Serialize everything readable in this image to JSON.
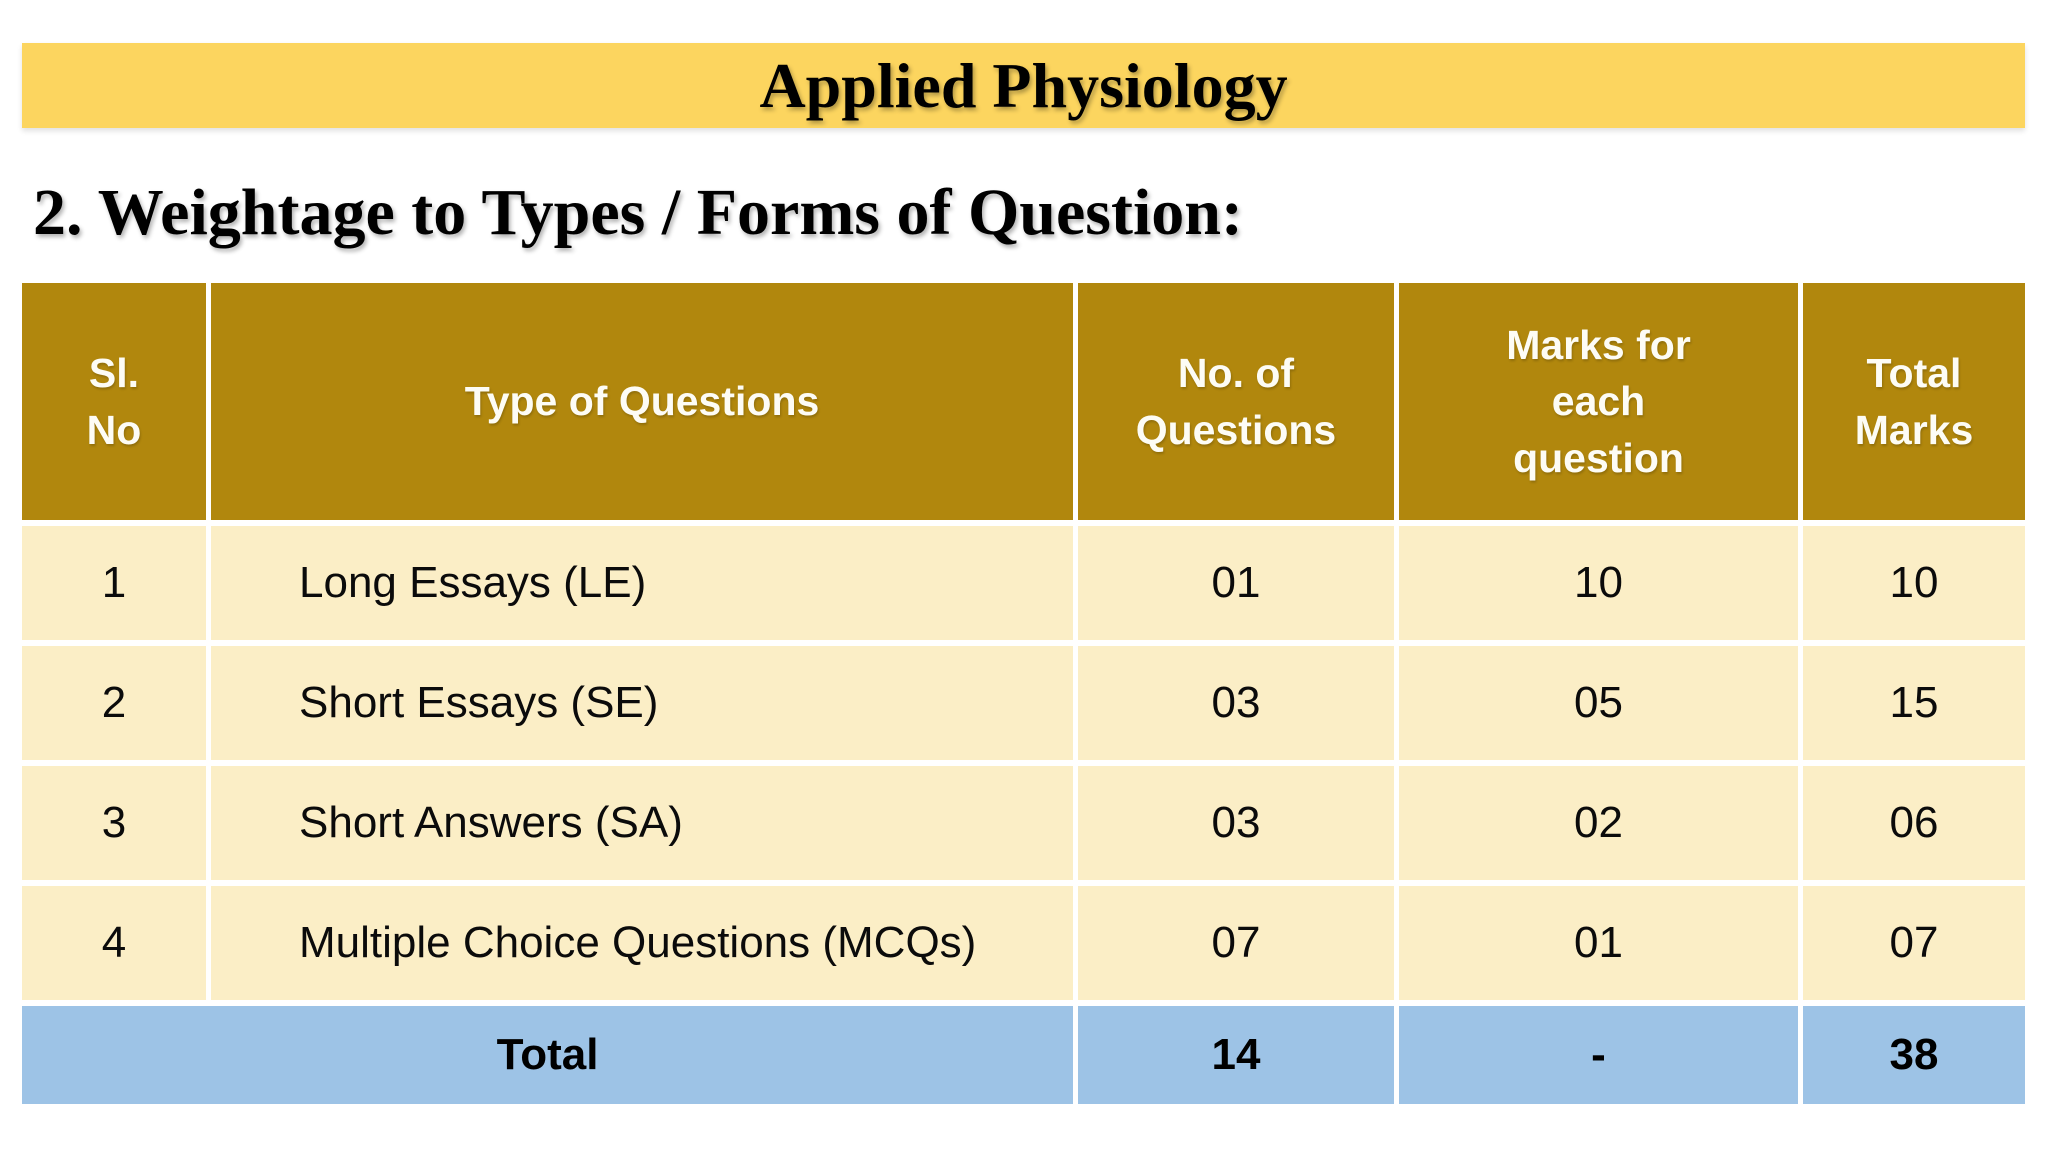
{
  "banner": {
    "title": "Applied Physiology"
  },
  "heading": "2. Weightage to Types / Forms of Question:",
  "table": {
    "columns": {
      "sl": "Sl.\nNo",
      "type": "Type of Questions",
      "num": "No. of\nQuestions",
      "marks": "Marks for\neach\nquestion",
      "total": "Total\nMarks"
    },
    "rows": [
      {
        "sl": "1",
        "type": "Long Essays (LE)",
        "num": "01",
        "marks": "10",
        "total": "10"
      },
      {
        "sl": "2",
        "type": "Short Essays (SE)",
        "num": "03",
        "marks": "05",
        "total": "15"
      },
      {
        "sl": "3",
        "type": "Short Answers (SA)",
        "num": "03",
        "marks": "02",
        "total": "06"
      },
      {
        "sl": "4",
        "type": "Multiple Choice Questions (MCQs)",
        "num": "07",
        "marks": "01",
        "total": "07"
      }
    ],
    "total_row": {
      "label": "Total",
      "num": "14",
      "marks": "-",
      "total": "38"
    }
  },
  "colors": {
    "banner_bg": "#FCD55F",
    "header_bg": "#B1870D",
    "row_bg": "#FBEEC6",
    "total_bg": "#9DC3E6",
    "grid_lines": "#FFFFFF",
    "text": "#000000",
    "header_text": "#FDFCF5"
  }
}
